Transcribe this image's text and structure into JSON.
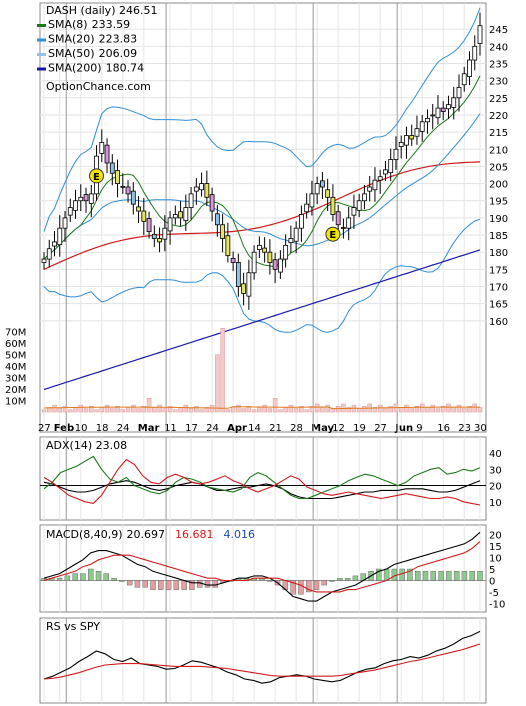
{
  "chart_data": [
    {
      "type": "candlestick",
      "title": "DASH (daily) 246.51",
      "watermark": "OptionChance.com",
      "legend": [
        {
          "name": "SMA(8)",
          "value": "233.59",
          "color": "#1a7a1a"
        },
        {
          "name": "SMA(20)",
          "value": "223.83",
          "color": "#2f8fd6"
        },
        {
          "name": "SMA(50)",
          "value": "206.09",
          "color": "#8fc3ea"
        },
        {
          "name": "SMA(200)",
          "value": "180.74",
          "color": "#1a1aa8"
        }
      ],
      "legend_placement": "top-left",
      "sma50_color": "#d11a1a",
      "ylim": [
        155,
        250
      ],
      "y_ticks": [
        "245",
        "240",
        "235",
        "230",
        "225",
        "220",
        "215",
        "210",
        "205",
        "200",
        "195",
        "190",
        "185",
        "180",
        "175",
        "170",
        "165",
        "160"
      ],
      "x_ticks": [
        "27",
        "Feb",
        "10",
        "18",
        "24",
        "Mar",
        "11",
        "17",
        "24",
        "Apr",
        "14",
        "21",
        "28",
        "May",
        "12",
        "19",
        "27",
        "Jun",
        "9",
        "16",
        "23",
        "30"
      ],
      "earnings_markers": [
        "E",
        "E"
      ],
      "close": [
        178,
        181,
        183,
        187,
        190,
        193,
        195,
        196,
        195,
        197,
        208,
        212,
        206,
        203,
        200,
        199,
        197,
        194,
        192,
        189,
        186,
        184,
        183,
        187,
        190,
        191,
        190,
        193,
        197,
        199,
        200,
        196,
        192,
        188,
        184,
        179,
        177,
        170,
        168,
        174,
        180,
        182,
        180,
        177,
        175,
        178,
        182,
        184,
        187,
        191,
        194,
        197,
        200,
        199,
        196,
        191,
        188,
        187,
        190,
        193,
        195,
        197,
        199,
        201,
        202,
        204,
        207,
        210,
        212,
        214,
        213,
        216,
        218,
        219,
        220,
        222,
        221,
        223,
        225,
        228,
        232,
        236,
        240,
        246
      ],
      "volume_ylim_millions": [
        0,
        75
      ],
      "volume_ticks": [
        "70M",
        "60M",
        "50M",
        "40M",
        "30M",
        "20M",
        "10M"
      ]
    },
    {
      "type": "line",
      "title": "ADX(14) 23.08",
      "ylim": [
        0,
        45
      ],
      "y_ticks": [
        "40",
        "30",
        "20",
        "10"
      ],
      "series": [
        {
          "name": "ADX",
          "color": "#000000",
          "values": [
            22,
            21,
            19,
            17,
            16,
            16,
            17,
            19,
            21,
            22,
            23,
            22,
            20,
            18,
            17,
            18,
            20,
            21,
            22,
            21,
            19,
            17,
            17,
            18,
            19,
            19,
            20,
            21,
            20,
            18,
            15,
            13,
            12,
            12,
            12,
            12,
            13,
            14,
            15,
            16,
            16,
            17,
            17,
            17,
            18,
            18,
            18,
            17,
            16,
            16,
            17,
            19,
            21,
            23
          ]
        },
        {
          "name": "+DI",
          "color": "#1a7a1a",
          "values": [
            18,
            22,
            28,
            30,
            32,
            35,
            38,
            30,
            24,
            22,
            25,
            20,
            18,
            16,
            15,
            17,
            22,
            25,
            24,
            22,
            19,
            18,
            17,
            16,
            18,
            25,
            28,
            26,
            22,
            18,
            14,
            12,
            12,
            14,
            16,
            18,
            20,
            23,
            25,
            27,
            26,
            24,
            22,
            20,
            22,
            26,
            28,
            30,
            31,
            27,
            28,
            30,
            29,
            31
          ]
        },
        {
          "name": "-DI",
          "color": "#d11a1a",
          "values": [
            25,
            22,
            18,
            14,
            12,
            10,
            9,
            14,
            22,
            30,
            36,
            33,
            26,
            22,
            21,
            25,
            27,
            25,
            22,
            21,
            22,
            24,
            26,
            23,
            21,
            18,
            16,
            18,
            20,
            23,
            26,
            24,
            19,
            17,
            15,
            14,
            15,
            16,
            15,
            14,
            13,
            12,
            13,
            14,
            15,
            14,
            13,
            12,
            12,
            13,
            12,
            10,
            9,
            8
          ]
        }
      ]
    },
    {
      "type": "line",
      "title": "MACD(8,40,9)",
      "values_shown": {
        "macd": "20.697",
        "signal": "16.681",
        "hist": "4.016"
      },
      "value_colors": {
        "macd": "#000000",
        "signal": "#d11a1a",
        "hist": "#1a4ab0"
      },
      "ylim": [
        -12,
        22
      ],
      "y_ticks": [
        "20",
        "15",
        "10",
        "5",
        "0",
        "-5",
        "-10"
      ],
      "series": [
        {
          "name": "MACD",
          "color": "#000000",
          "values": [
            1,
            2,
            3,
            5,
            7,
            9,
            12,
            13,
            13,
            12,
            11,
            9,
            7,
            6,
            4,
            3,
            2,
            1,
            0,
            -1,
            -1,
            -2,
            -2,
            -1,
            0,
            1,
            1,
            2,
            2,
            1,
            -1,
            -4,
            -7,
            -8,
            -9,
            -9,
            -7,
            -5,
            -4,
            -3,
            -2,
            0,
            2,
            4,
            5,
            7,
            8,
            9,
            10,
            11,
            12,
            13,
            14,
            15,
            16,
            18,
            21
          ]
        },
        {
          "name": "Signal",
          "color": "#d11a1a",
          "values": [
            0,
            1,
            2,
            3,
            4,
            6,
            7,
            9,
            10,
            11,
            11,
            11,
            10,
            9,
            8,
            7,
            6,
            5,
            4,
            3,
            2,
            1,
            1,
            0,
            0,
            0,
            0,
            1,
            1,
            1,
            1,
            0,
            -1,
            -2,
            -4,
            -5,
            -5,
            -5,
            -5,
            -4,
            -4,
            -3,
            -2,
            -1,
            0,
            2,
            3,
            4,
            6,
            7,
            8,
            9,
            10,
            11,
            12,
            14,
            17
          ]
        }
      ]
    },
    {
      "type": "line",
      "title": "RS vs SPY",
      "series": [
        {
          "name": "RS",
          "color": "#000000",
          "values": [
            30,
            34,
            40,
            46,
            55,
            62,
            70,
            66,
            58,
            55,
            60,
            52,
            50,
            48,
            44,
            45,
            50,
            56,
            54,
            50,
            46,
            40,
            36,
            30,
            28,
            24,
            26,
            32,
            34,
            36,
            34,
            30,
            28,
            26,
            28,
            34,
            40,
            44,
            46,
            52,
            56,
            58,
            62,
            60,
            64,
            70,
            74,
            80,
            88,
            92,
            98
          ]
        },
        {
          "name": "RS MA",
          "color": "#d11a1a",
          "values": [
            30,
            31,
            33,
            36,
            39,
            43,
            47,
            50,
            51,
            52,
            52,
            52,
            51,
            50,
            49,
            48,
            48,
            48,
            48,
            47,
            46,
            45,
            43,
            41,
            39,
            37,
            35,
            34,
            34,
            34,
            34,
            34,
            34,
            34,
            35,
            37,
            39,
            41,
            43,
            46,
            49,
            52,
            55,
            57,
            60,
            63,
            66,
            69,
            72,
            76,
            80
          ]
        }
      ]
    }
  ]
}
